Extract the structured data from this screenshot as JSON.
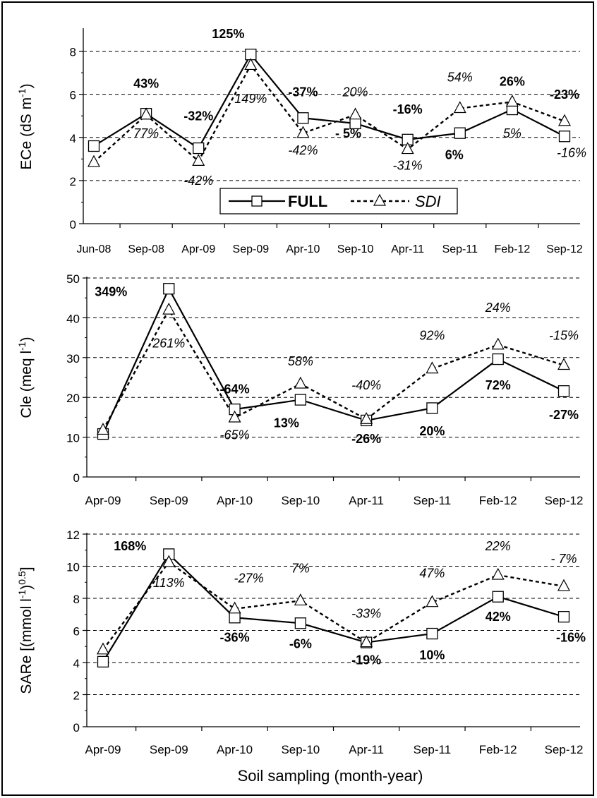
{
  "global_xlabel": "Soil sampling (month-year)",
  "legend": {
    "full_label": "FULL",
    "sdi_label": "SDI"
  },
  "colors": {
    "line": "#000000",
    "grid": "#000000",
    "marker_fill": "#ffffff"
  },
  "chart_data": [
    {
      "type": "line",
      "ylabel": "ECe (dS m",
      "ylabel_sup": "-1",
      "ylabel_end": ")",
      "ylim": [
        0,
        9
      ],
      "yticks": [
        0,
        2,
        4,
        6,
        8
      ],
      "grid": "horizontal-dashed",
      "categories": [
        "Jun-08",
        "Sep-08",
        "Apr-09",
        "Sep-09",
        "Apr-10",
        "Sep-10",
        "Apr-11",
        "Sep-11",
        "Feb-12",
        "Sep-12"
      ],
      "series": [
        {
          "name": "FULL",
          "values": [
            3.6,
            5.1,
            3.5,
            7.85,
            4.9,
            4.65,
            3.9,
            4.2,
            5.3,
            4.05
          ]
        },
        {
          "name": "SDI",
          "values": [
            2.85,
            5.05,
            2.9,
            7.35,
            4.2,
            5.05,
            3.45,
            5.35,
            5.65,
            4.75
          ]
        }
      ],
      "annotations": [
        {
          "text": "43%",
          "cat": 1,
          "y": 6.3,
          "style": "bold"
        },
        {
          "text": "77%",
          "cat": 1,
          "y": 4.0,
          "style": "italic"
        },
        {
          "text": "-32%",
          "cat": 2,
          "y": 4.8,
          "style": "bold"
        },
        {
          "text": "-42%",
          "cat": 2,
          "y": 1.8,
          "style": "italic"
        },
        {
          "text": "125%",
          "cat": 3,
          "y": 8.6,
          "style": "bold",
          "dx": -32
        },
        {
          "text": "149%",
          "cat": 3,
          "y": 5.6,
          "style": "italic"
        },
        {
          "text": "-37%",
          "cat": 4,
          "y": 5.9,
          "style": "bold"
        },
        {
          "text": "-42%",
          "cat": 4,
          "y": 3.2,
          "style": "italic"
        },
        {
          "text": "20%",
          "cat": 5,
          "y": 5.9,
          "style": "italic"
        },
        {
          "text": "- 5%",
          "cat": 5,
          "y": 4.0,
          "style": "bold",
          "dx": -10
        },
        {
          "text": "-16%",
          "cat": 6,
          "y": 5.1,
          "style": "bold"
        },
        {
          "text": "-31%",
          "cat": 6,
          "y": 2.5,
          "style": "italic"
        },
        {
          "text": "54%",
          "cat": 7,
          "y": 6.6,
          "style": "italic"
        },
        {
          "text": "6%",
          "cat": 7,
          "y": 3.0,
          "style": "bold",
          "dx": -8
        },
        {
          "text": "26%",
          "cat": 8,
          "y": 6.4,
          "style": "bold"
        },
        {
          "text": "5%",
          "cat": 8,
          "y": 4.0,
          "style": "italic"
        },
        {
          "text": "-23%",
          "cat": 9,
          "y": 5.8,
          "style": "bold"
        },
        {
          "text": "-16%",
          "cat": 9,
          "y": 3.1,
          "style": "italic",
          "dx": 10
        }
      ]
    },
    {
      "type": "line",
      "ylabel": "Cle (meq l",
      "ylabel_sup": "-1",
      "ylabel_end": ")",
      "ylim": [
        0,
        50
      ],
      "yticks": [
        0,
        10,
        20,
        30,
        40,
        50
      ],
      "grid": "horizontal-dashed",
      "categories": [
        "Apr-09",
        "Sep-09",
        "Apr-10",
        "Sep-10",
        "Apr-11",
        "Sep-11",
        "Feb-12",
        "Sep-12"
      ],
      "series": [
        {
          "name": "FULL",
          "values": [
            10.8,
            47.3,
            17.0,
            19.4,
            14.2,
            17.3,
            29.6,
            21.6
          ]
        },
        {
          "name": "SDI",
          "values": [
            11.8,
            42.0,
            14.9,
            23.4,
            14.5,
            27.2,
            33.2,
            28.1
          ]
        }
      ],
      "annotations": [
        {
          "text": "349%",
          "cat": 1,
          "y": 45.5,
          "style": "bold",
          "dx": -82
        },
        {
          "text": "261%",
          "cat": 1,
          "y": 32.5,
          "style": "italic"
        },
        {
          "text": "-64%",
          "cat": 2,
          "y": 21.0,
          "style": "bold"
        },
        {
          "text": "-65%",
          "cat": 2,
          "y": 9.5,
          "style": "italic"
        },
        {
          "text": "58%",
          "cat": 3,
          "y": 28.0,
          "style": "italic"
        },
        {
          "text": "13%",
          "cat": 3,
          "y": 12.5,
          "style": "bold",
          "dx": -20
        },
        {
          "text": "-40%",
          "cat": 4,
          "y": 22.0,
          "style": "italic"
        },
        {
          "text": "-26%",
          "cat": 4,
          "y": 8.5,
          "style": "bold"
        },
        {
          "text": "92%",
          "cat": 5,
          "y": 34.5,
          "style": "italic"
        },
        {
          "text": "20%",
          "cat": 5,
          "y": 10.5,
          "style": "bold"
        },
        {
          "text": "24%",
          "cat": 6,
          "y": 41.5,
          "style": "italic"
        },
        {
          "text": "72%",
          "cat": 6,
          "y": 22.0,
          "style": "bold"
        },
        {
          "text": "-15%",
          "cat": 7,
          "y": 34.5,
          "style": "italic"
        },
        {
          "text": "-27%",
          "cat": 7,
          "y": 14.5,
          "style": "bold"
        }
      ]
    },
    {
      "type": "line",
      "ylabel": "SARe [(mmol l",
      "ylabel_sup": "-1",
      "ylabel_mid": ")",
      "ylabel_sup2": "0.5",
      "ylabel_end": "]",
      "ylim": [
        0,
        12
      ],
      "yticks": [
        0,
        2,
        4,
        6,
        8,
        10,
        12
      ],
      "grid": "horizontal-dashed",
      "categories": [
        "Apr-09",
        "Sep-09",
        "Apr-10",
        "Sep-10",
        "Apr-11",
        "Sep-11",
        "Feb-12",
        "Sep-12"
      ],
      "series": [
        {
          "name": "FULL",
          "values": [
            4.05,
            10.75,
            6.8,
            6.45,
            5.25,
            5.8,
            8.1,
            6.85
          ]
        },
        {
          "name": "SDI",
          "values": [
            4.8,
            10.25,
            7.35,
            7.85,
            5.25,
            7.75,
            9.45,
            8.75
          ]
        }
      ],
      "annotations": [
        {
          "text": "168%",
          "cat": 1,
          "y": 11.0,
          "style": "bold",
          "dx": -55
        },
        {
          "text": "113%",
          "cat": 1,
          "y": 8.7,
          "style": "italic"
        },
        {
          "text": "-27%",
          "cat": 2,
          "y": 9.0,
          "style": "italic",
          "dx": 20
        },
        {
          "text": "-36%",
          "cat": 2,
          "y": 5.3,
          "style": "bold"
        },
        {
          "text": "7%",
          "cat": 3,
          "y": 9.6,
          "style": "italic"
        },
        {
          "text": "-6%",
          "cat": 3,
          "y": 4.9,
          "style": "bold"
        },
        {
          "text": "-33%",
          "cat": 4,
          "y": 6.8,
          "style": "italic"
        },
        {
          "text": "-19%",
          "cat": 4,
          "y": 3.9,
          "style": "bold"
        },
        {
          "text": "47%",
          "cat": 5,
          "y": 9.3,
          "style": "italic"
        },
        {
          "text": "10%",
          "cat": 5,
          "y": 4.2,
          "style": "bold"
        },
        {
          "text": "22%",
          "cat": 6,
          "y": 11.0,
          "style": "italic"
        },
        {
          "text": "42%",
          "cat": 6,
          "y": 6.6,
          "style": "bold"
        },
        {
          "text": "- 7%",
          "cat": 7,
          "y": 10.2,
          "style": "italic"
        },
        {
          "text": "-16%",
          "cat": 7,
          "y": 5.3,
          "style": "bold",
          "dx": 10
        }
      ]
    }
  ]
}
